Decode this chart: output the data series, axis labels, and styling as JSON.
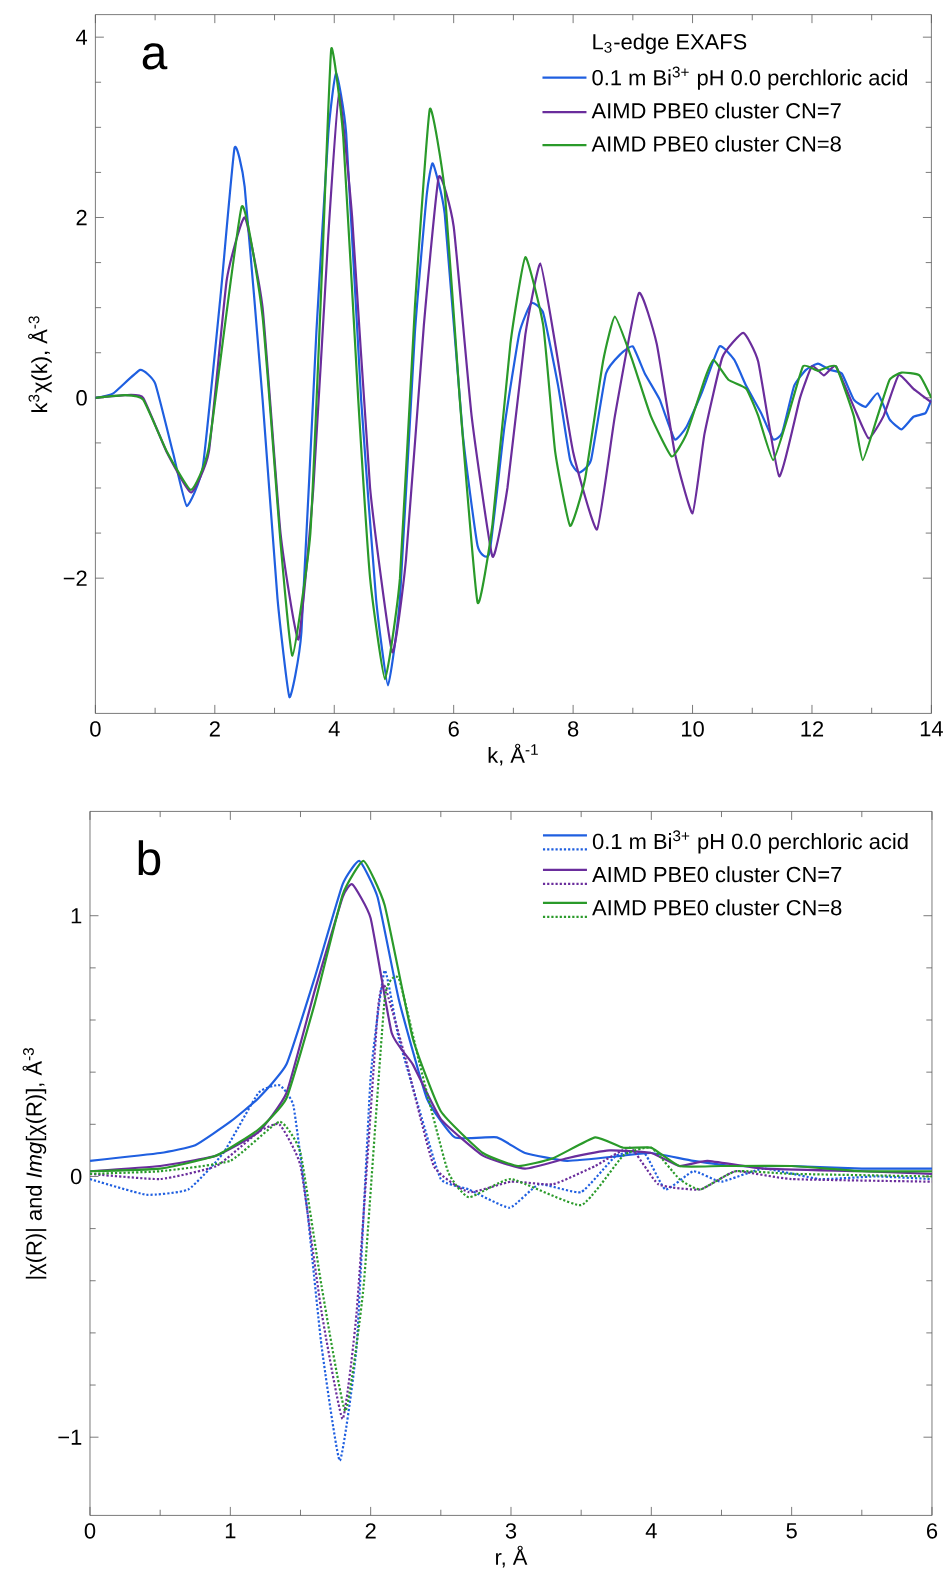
{
  "chart_data": [
    {
      "type": "line",
      "xlabel": "k,  Å$^{-1}$",
      "ylabel": "k$^{3}$χ(k),  Å$^{-3}$",
      "legend_title": "L$_{3}$-edge EXAFS",
      "annotations": [
        "a"
      ],
      "legend": "top right",
      "xlim": [
        0,
        14
      ],
      "ylim": [
        -3.5,
        4.25
      ],
      "xticks": [
        0,
        2,
        4,
        6,
        8,
        10,
        12,
        14
      ],
      "yticks": [
        {
          "value": -2,
          "label": "−2"
        },
        0,
        2,
        4
      ],
      "series": [
        {
          "name": "0.1 m Bi$^{3+}$ pH 0.0 perchloric acid",
          "color": "#1f5fe0",
          "x": [
            0,
            0.3,
            0.75,
            1.0,
            1.3,
            1.53,
            1.8,
            2.1,
            2.33,
            2.5,
            2.8,
            3.05,
            3.25,
            3.45,
            3.7,
            3.9,
            4.03,
            4.2,
            4.45,
            4.7,
            4.9,
            5.1,
            5.35,
            5.55,
            5.65,
            5.85,
            6.15,
            6.4,
            6.6,
            6.85,
            7.1,
            7.3,
            7.5,
            7.75,
            7.95,
            8.1,
            8.3,
            8.55,
            8.8,
            9.0,
            9.2,
            9.45,
            9.7,
            9.9,
            10.15,
            10.45,
            10.7,
            10.9,
            11.15,
            11.35,
            11.5,
            11.7,
            11.9,
            12.1,
            12.3,
            12.5,
            12.7,
            12.9,
            13.1,
            13.3,
            13.5,
            13.7,
            13.9,
            14.0
          ],
          "values": [
            0,
            0.05,
            0.31,
            0.16,
            -0.61,
            -1.2,
            -0.76,
            1.16,
            2.77,
            2.34,
            -0.02,
            -2.23,
            -3.32,
            -2.6,
            0.72,
            2.93,
            3.61,
            2.93,
            -0.02,
            -2.23,
            -3.19,
            -2.23,
            0.72,
            2.26,
            2.6,
            2.04,
            -0.39,
            -1.64,
            -1.72,
            -0.32,
            0.72,
            1.05,
            0.94,
            0.13,
            -0.69,
            -0.83,
            -0.69,
            0.27,
            0.49,
            0.57,
            0.27,
            -0.02,
            -0.46,
            -0.32,
            0.05,
            0.57,
            0.42,
            0.13,
            -0.17,
            -0.46,
            -0.39,
            0.13,
            0.31,
            0.38,
            0.31,
            0.27,
            -0.02,
            -0.1,
            0.05,
            -0.24,
            -0.35,
            -0.21,
            -0.17,
            -0.02
          ]
        },
        {
          "name": "AIMD PBE0 cluster CN=7",
          "color": "#6a2d9c",
          "x": [
            0,
            0.5,
            0.8,
            1.2,
            1.6,
            1.9,
            2.2,
            2.5,
            2.8,
            3.1,
            3.4,
            3.65,
            3.9,
            4.08,
            4.3,
            4.6,
            4.97,
            5.2,
            5.5,
            5.75,
            6.0,
            6.3,
            6.65,
            6.9,
            7.2,
            7.45,
            7.7,
            8.0,
            8.4,
            8.7,
            9.1,
            9.4,
            9.7,
            10.0,
            10.2,
            10.5,
            10.85,
            11.1,
            11.45,
            11.8,
            12.0,
            12.2,
            12.4,
            12.7,
            12.95,
            13.2,
            13.45,
            13.7,
            14.0
          ],
          "values": [
            0,
            0.03,
            0.0,
            -0.61,
            -1.05,
            -0.6,
            1.31,
            2.0,
            1.0,
            -1.5,
            -2.68,
            -1.0,
            1.8,
            3.37,
            2.0,
            -1.0,
            -2.82,
            -1.8,
            0.8,
            2.45,
            1.9,
            -0.2,
            -1.76,
            -1.0,
            0.7,
            1.49,
            0.6,
            -0.6,
            -1.46,
            -0.2,
            1.16,
            0.6,
            -0.6,
            -1.28,
            -0.4,
            0.45,
            0.72,
            0.4,
            -0.87,
            0.0,
            0.35,
            0.25,
            0.35,
            -0.1,
            -0.45,
            -0.2,
            0.25,
            0.1,
            -0.05
          ]
        },
        {
          "name": "AIMD PBE0 cluster CN=8",
          "color": "#2a9a2a",
          "x": [
            0,
            0.5,
            0.8,
            1.2,
            1.6,
            1.9,
            2.45,
            2.8,
            3.1,
            3.3,
            3.6,
            3.8,
            3.95,
            4.15,
            4.4,
            4.6,
            4.85,
            5.1,
            5.35,
            5.6,
            5.85,
            6.1,
            6.4,
            6.65,
            6.95,
            7.2,
            7.5,
            7.7,
            7.95,
            8.2,
            8.5,
            8.7,
            9.0,
            9.3,
            9.65,
            9.9,
            10.2,
            10.35,
            10.6,
            10.9,
            11.1,
            11.35,
            11.6,
            11.85,
            12.1,
            12.4,
            12.7,
            12.85,
            13.1,
            13.3,
            13.5,
            13.8,
            14.0
          ],
          "values": [
            0,
            0.03,
            -0.02,
            -0.6,
            -1.02,
            -0.55,
            2.12,
            0.9,
            -1.6,
            -2.86,
            -1.5,
            1.5,
            3.87,
            2.9,
            0.0,
            -2.0,
            -3.12,
            -2.0,
            1.0,
            3.2,
            2.3,
            0.0,
            -2.27,
            -1.4,
            0.6,
            1.56,
            0.8,
            -0.6,
            -1.42,
            -0.9,
            0.4,
            0.9,
            0.4,
            -0.2,
            -0.65,
            -0.4,
            0.2,
            0.42,
            0.2,
            0.1,
            -0.2,
            -0.69,
            -0.2,
            0.35,
            0.3,
            0.35,
            -0.2,
            -0.69,
            -0.2,
            0.2,
            0.28,
            0.25,
            0.0
          ]
        }
      ]
    },
    {
      "type": "line",
      "xlabel": "r, Å",
      "ylabel": "|χ(R)| and *Img*[χ(R)],  Å$^{-3}$",
      "annotations": [
        "b"
      ],
      "legend": "top right",
      "xlim": [
        0,
        6
      ],
      "ylim": [
        -1.3,
        1.4
      ],
      "xticks": [
        0,
        1,
        2,
        3,
        4,
        5,
        6
      ],
      "yticks": [
        {
          "value": -1,
          "label": "−1"
        },
        0,
        1
      ],
      "series": [
        {
          "name": "0.1 m Bi$^{3+}$ pH 0.0 perchloric acid",
          "color": "#1f5fe0",
          "x": [
            0,
            0.5,
            0.75,
            1.0,
            1.2,
            1.4,
            1.6,
            1.8,
            1.92,
            2.05,
            2.2,
            2.4,
            2.6,
            2.9,
            3.1,
            3.4,
            3.8,
            4.0,
            4.3,
            4.6,
            5.0,
            5.5,
            6.0
          ],
          "values": [
            0.06,
            0.09,
            0.12,
            0.21,
            0.3,
            0.43,
            0.76,
            1.12,
            1.21,
            1.07,
            0.68,
            0.3,
            0.15,
            0.15,
            0.09,
            0.06,
            0.08,
            0.09,
            0.06,
            0.04,
            0.04,
            0.03,
            0.03
          ]
        },
        {
          "color": "#1f5fe0",
          "line_style": "dotted",
          "x": [
            0,
            0.4,
            0.7,
            0.95,
            1.2,
            1.35,
            1.45,
            1.55,
            1.65,
            1.78,
            1.9,
            2.0,
            2.1,
            2.2,
            2.35,
            2.5,
            2.7,
            2.99,
            3.2,
            3.5,
            3.75,
            3.95,
            4.1,
            4.3,
            4.5,
            4.8,
            5.2,
            5.6,
            6.0
          ],
          "values": [
            -0.01,
            -0.07,
            -0.05,
            0.09,
            0.32,
            0.35,
            0.27,
            -0.14,
            -0.65,
            -1.09,
            -0.65,
            0.38,
            0.79,
            0.53,
            0.25,
            -0.01,
            -0.05,
            -0.12,
            -0.03,
            -0.06,
            0.08,
            0.09,
            -0.05,
            0.02,
            -0.02,
            0.03,
            -0.01,
            0.0,
            -0.01
          ]
        },
        {
          "name": "AIMD PBE0 cluster CN=7",
          "color": "#6a2d9c",
          "x": [
            0,
            0.5,
            0.9,
            1.2,
            1.4,
            1.6,
            1.8,
            1.87,
            2.0,
            2.15,
            2.3,
            2.5,
            2.8,
            3.1,
            3.4,
            3.7,
            4.0,
            4.2,
            4.4,
            4.8,
            5.5,
            6.0
          ],
          "values": [
            0.02,
            0.04,
            0.08,
            0.17,
            0.32,
            0.71,
            1.07,
            1.12,
            0.99,
            0.55,
            0.43,
            0.22,
            0.08,
            0.03,
            0.07,
            0.1,
            0.09,
            0.04,
            0.06,
            0.03,
            0.02,
            0.01
          ]
        },
        {
          "color": "#6a2d9c",
          "line_style": "dotted",
          "x": [
            0,
            0.5,
            0.9,
            1.2,
            1.35,
            1.5,
            1.65,
            1.8,
            1.9,
            2.05,
            2.1,
            2.25,
            2.45,
            2.7,
            3.0,
            3.3,
            3.6,
            3.85,
            4.05,
            4.35,
            4.6,
            5.0,
            6.0
          ],
          "values": [
            0.01,
            -0.01,
            0.04,
            0.17,
            0.2,
            0.04,
            -0.52,
            -0.93,
            -0.52,
            0.63,
            0.73,
            0.45,
            0.04,
            -0.06,
            -0.02,
            -0.03,
            0.04,
            0.11,
            -0.03,
            -0.05,
            0.02,
            -0.01,
            -0.02
          ]
        },
        {
          "name": "AIMD PBE0 cluster CN=8",
          "color": "#2a9a2a",
          "x": [
            0,
            0.5,
            0.9,
            1.2,
            1.4,
            1.6,
            1.8,
            1.95,
            2.1,
            2.3,
            2.5,
            2.8,
            3.05,
            3.3,
            3.6,
            3.8,
            4.0,
            4.2,
            4.5,
            5.0,
            5.5,
            6.0
          ],
          "values": [
            0.02,
            0.03,
            0.08,
            0.18,
            0.3,
            0.66,
            1.08,
            1.21,
            1.04,
            0.53,
            0.25,
            0.09,
            0.04,
            0.07,
            0.15,
            0.11,
            0.11,
            0.04,
            0.04,
            0.04,
            0.02,
            0.02
          ]
        },
        {
          "color": "#2a9a2a",
          "line_style": "dotted",
          "x": [
            0,
            0.5,
            1.0,
            1.35,
            1.5,
            1.65,
            1.82,
            1.95,
            2.1,
            2.2,
            2.35,
            2.55,
            2.7,
            3.0,
            3.5,
            3.8,
            4.0,
            4.2,
            4.35,
            4.6,
            5.0,
            6.0
          ],
          "values": [
            0.01,
            0.02,
            0.06,
            0.21,
            0.09,
            -0.42,
            -0.9,
            -0.42,
            0.68,
            0.76,
            0.43,
            0.02,
            -0.08,
            -0.01,
            -0.11,
            0.08,
            0.11,
            -0.01,
            -0.05,
            0.02,
            0.01,
            0.0
          ]
        }
      ]
    }
  ]
}
